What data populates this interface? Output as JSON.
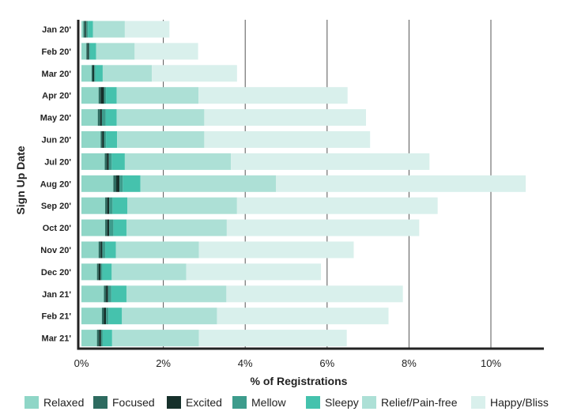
{
  "chart_data": {
    "type": "bar",
    "orientation": "horizontal",
    "stacked": true,
    "xlabel": "% of Registrations",
    "ylabel": "Sign Up Date",
    "xlim": [
      0,
      11
    ],
    "x_ticks": [
      0,
      2,
      4,
      6,
      8,
      10
    ],
    "x_tick_labels": [
      "0%",
      "2%",
      "4%",
      "6%",
      "8%",
      "10%"
    ],
    "grid": "vertical",
    "legend_position": "bottom",
    "categories": [
      "Jan 20'",
      "Feb 20'",
      "Mar 20'",
      "Apr 20'",
      "May 20'",
      "Jun 20'",
      "Jul 20'",
      "Aug 20'",
      "Sep 20'",
      "Oct 20'",
      "Nov 20'",
      "Dec 20'",
      "Jan 21'",
      "Feb 21'",
      "Mar 21'"
    ],
    "series": [
      {
        "name": "Relaxed",
        "color": "#8fd6c7",
        "values": [
          0.05,
          0.12,
          0.25,
          0.42,
          0.4,
          0.47,
          0.57,
          0.78,
          0.58,
          0.58,
          0.42,
          0.38,
          0.55,
          0.5,
          0.38
        ]
      },
      {
        "name": "Focused",
        "color": "#2e6b60",
        "values": [
          0.05,
          0.03,
          0.03,
          0.05,
          0.06,
          0.04,
          0.05,
          0.07,
          0.05,
          0.05,
          0.05,
          0.04,
          0.05,
          0.05,
          0.05
        ]
      },
      {
        "name": "Excited",
        "color": "#16302b",
        "values": [
          0.02,
          0.03,
          0.03,
          0.08,
          0.04,
          0.04,
          0.05,
          0.08,
          0.05,
          0.05,
          0.04,
          0.05,
          0.05,
          0.05,
          0.05
        ]
      },
      {
        "name": "Mellow",
        "color": "#3d9c8c",
        "values": [
          0.04,
          0.03,
          0.03,
          0.05,
          0.09,
          0.05,
          0.07,
          0.08,
          0.08,
          0.1,
          0.07,
          0.04,
          0.08,
          0.06,
          0.04
        ]
      },
      {
        "name": "Sleepy",
        "color": "#45c2ad",
        "values": [
          0.12,
          0.15,
          0.18,
          0.26,
          0.27,
          0.27,
          0.32,
          0.43,
          0.36,
          0.32,
          0.26,
          0.23,
          0.37,
          0.33,
          0.23
        ]
      },
      {
        "name": "Relief/Pain-free",
        "color": "#ade0d6",
        "values": [
          0.78,
          0.94,
          1.2,
          2.0,
          2.14,
          2.13,
          2.59,
          3.31,
          2.68,
          2.45,
          2.03,
          1.82,
          2.44,
          2.32,
          2.12
        ]
      },
      {
        "name": "Happy/Bliss",
        "color": "#d9f0ec",
        "values": [
          1.09,
          1.55,
          2.08,
          3.64,
          3.95,
          4.05,
          4.85,
          6.1,
          4.9,
          4.7,
          3.78,
          3.29,
          4.31,
          4.19,
          3.61
        ]
      }
    ]
  }
}
